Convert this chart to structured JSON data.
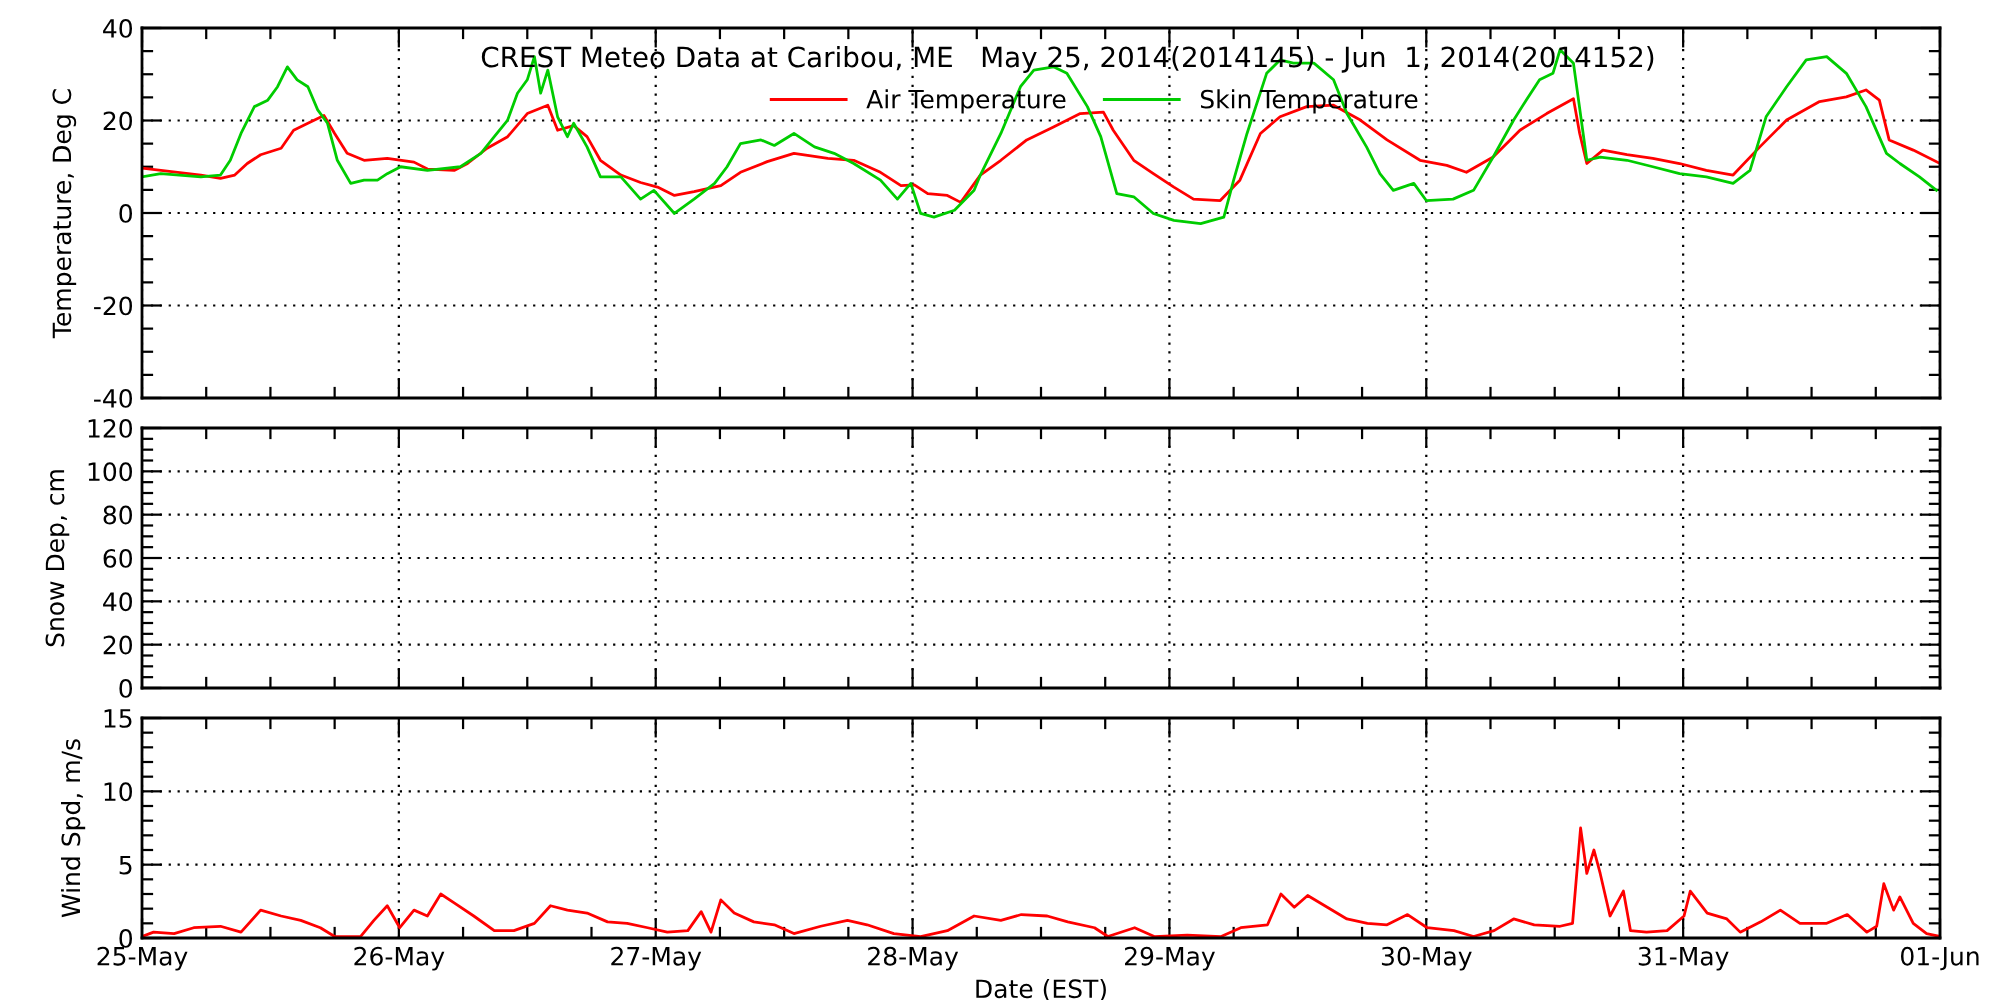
{
  "chart_data": [
    {
      "type": "line",
      "title": "CREST Meteo Data at Caribou, ME   May 25, 2014(2014145) - Jun  1, 2014(2014152)",
      "ylabel": "Temperature, Deg C",
      "xlim": [
        "2014-05-25T00:00",
        "2014-06-01T00:00"
      ],
      "xticks": [
        {
          "value": "2014-05-25T00:00",
          "label": null
        },
        {
          "value": "2014-05-26T00:00",
          "label": null
        },
        {
          "value": "2014-05-27T00:00",
          "label": null
        },
        {
          "value": "2014-05-28T00:00",
          "label": null
        },
        {
          "value": "2014-05-29T00:00",
          "label": null
        },
        {
          "value": "2014-05-30T00:00",
          "label": null
        },
        {
          "value": "2014-05-31T00:00",
          "label": null
        },
        {
          "value": "2014-06-01T00:00",
          "label": null
        }
      ],
      "ylim": [
        -40,
        40
      ],
      "yticks": [
        -40,
        -20,
        0,
        20,
        40
      ],
      "tick_labels": "y",
      "grid": true,
      "legend": "top",
      "series": [
        {
          "name": "Air Temperature",
          "color": "#ff0000",
          "x": [
            "2014-05-25T00:00",
            "2014-05-25T05:30",
            "2014-05-25T07:20",
            "2014-05-25T08:40",
            "2014-05-25T09:50",
            "2014-05-25T11:05",
            "2014-05-25T13:00",
            "2014-05-25T14:10",
            "2014-05-25T15:30",
            "2014-05-25T17:00",
            "2014-05-25T18:00",
            "2014-05-25T19:10",
            "2014-05-25T20:45",
            "2014-05-25T22:55",
            "2014-05-26T01:25",
            "2014-05-26T02:40",
            "2014-05-26T05:10",
            "2014-05-26T06:25",
            "2014-05-26T08:15",
            "2014-05-26T10:10",
            "2014-05-26T12:00",
            "2014-05-26T13:55",
            "2014-05-26T14:50",
            "2014-05-26T16:20",
            "2014-05-26T17:35",
            "2014-05-26T18:50",
            "2014-05-26T20:45",
            "2014-05-26T22:35",
            "2014-05-27T00:10",
            "2014-05-27T01:45",
            "2014-05-27T03:35",
            "2014-05-27T06:05",
            "2014-05-27T07:55",
            "2014-05-27T10:25",
            "2014-05-27T12:55",
            "2014-05-27T16:05",
            "2014-05-27T18:30",
            "2014-05-27T21:00",
            "2014-05-27T22:55",
            "2014-05-28T00:10",
            "2014-05-28T01:25",
            "2014-05-28T03:15",
            "2014-05-28T04:30",
            "2014-05-28T06:20",
            "2014-05-28T08:15",
            "2014-05-28T10:40",
            "2014-05-28T13:10",
            "2014-05-28T15:40",
            "2014-05-28T17:50",
            "2014-05-28T18:45",
            "2014-05-28T20:40",
            "2014-05-28T22:30",
            "2014-05-29T00:25",
            "2014-05-29T02:15",
            "2014-05-29T04:45",
            "2014-05-29T06:35",
            "2014-05-29T08:30",
            "2014-05-29T10:20",
            "2014-05-29T12:50",
            "2014-05-29T15:20",
            "2014-05-29T17:50",
            "2014-05-29T20:20",
            "2014-05-29T23:25",
            "2014-05-30T01:55",
            "2014-05-30T03:45",
            "2014-05-30T06:15",
            "2014-05-30T08:45",
            "2014-05-30T11:15",
            "2014-05-30T13:45",
            "2014-05-30T14:20",
            "2014-05-30T15:00",
            "2014-05-30T16:30",
            "2014-05-30T18:45",
            "2014-05-30T21:10",
            "2014-05-30T23:40",
            "2014-05-31T02:10",
            "2014-05-31T04:40",
            "2014-05-31T07:10",
            "2014-05-31T09:40",
            "2014-05-31T12:45",
            "2014-05-31T15:15",
            "2014-05-31T17:05",
            "2014-05-31T18:20",
            "2014-05-31T19:15",
            "2014-05-31T21:30",
            "2014-06-01T00:00"
          ],
          "values": [
            9.7,
            8.2,
            7.5,
            8.2,
            10.7,
            12.6,
            14.0,
            17.9,
            19.4,
            21.1,
            17.2,
            12.9,
            11.4,
            11.8,
            11.0,
            9.5,
            9.2,
            10.7,
            14.0,
            16.5,
            21.5,
            23.3,
            17.9,
            18.9,
            16.5,
            11.4,
            8.2,
            6.6,
            5.6,
            3.8,
            4.6,
            5.9,
            8.8,
            11.1,
            12.9,
            11.8,
            11.4,
            8.8,
            5.9,
            6.1,
            4.2,
            3.8,
            2.3,
            8.2,
            11.4,
            15.8,
            18.6,
            21.5,
            21.8,
            17.9,
            11.4,
            8.5,
            5.6,
            3.0,
            2.7,
            7.1,
            17.2,
            20.8,
            23.0,
            23.3,
            20.1,
            15.8,
            11.4,
            10.3,
            8.8,
            12.1,
            17.9,
            21.5,
            24.7,
            17.2,
            10.7,
            13.6,
            12.6,
            11.8,
            10.7,
            9.2,
            8.2,
            14.3,
            20.1,
            24.1,
            25.1,
            26.6,
            24.4,
            15.8,
            13.6,
            10.7
          ]
        },
        {
          "name": "Skin Temperature",
          "color": "#00cc00",
          "x": [
            "2014-05-25T00:00",
            "2014-05-25T01:45",
            "2014-05-25T05:30",
            "2014-05-25T07:20",
            "2014-05-25T08:15",
            "2014-05-25T09:15",
            "2014-05-25T10:30",
            "2014-05-25T11:45",
            "2014-05-25T12:40",
            "2014-05-25T13:35",
            "2014-05-25T14:30",
            "2014-05-25T15:30",
            "2014-05-25T16:25",
            "2014-05-25T17:20",
            "2014-05-25T18:15",
            "2014-05-25T19:30",
            "2014-05-25T20:45",
            "2014-05-25T22:00",
            "2014-05-25T22:55",
            "2014-05-26T00:10",
            "2014-05-26T02:40",
            "2014-05-26T05:45",
            "2014-05-26T07:40",
            "2014-05-26T08:55",
            "2014-05-26T10:10",
            "2014-05-26T11:05",
            "2014-05-26T12:00",
            "2014-05-26T12:40",
            "2014-05-26T13:15",
            "2014-05-26T13:55",
            "2014-05-26T14:50",
            "2014-05-26T15:45",
            "2014-05-26T16:20",
            "2014-05-26T17:35",
            "2014-05-26T18:50",
            "2014-05-26T20:45",
            "2014-05-26T22:35",
            "2014-05-26T23:50",
            "2014-05-27T01:45",
            "2014-05-27T03:35",
            "2014-05-27T05:30",
            "2014-05-27T06:40",
            "2014-05-27T07:55",
            "2014-05-27T09:50",
            "2014-05-27T11:05",
            "2014-05-27T12:55",
            "2014-05-27T14:50",
            "2014-05-27T16:40",
            "2014-05-27T18:30",
            "2014-05-27T21:00",
            "2014-05-27T22:35",
            "2014-05-27T23:50",
            "2014-05-28T00:45",
            "2014-05-28T02:00",
            "2014-05-28T03:55",
            "2014-05-28T05:45",
            "2014-05-28T06:20",
            "2014-05-28T08:15",
            "2014-05-28T10:05",
            "2014-05-28T11:20",
            "2014-05-28T13:10",
            "2014-05-28T14:25",
            "2014-05-28T16:20",
            "2014-05-28T17:35",
            "2014-05-28T19:05",
            "2014-05-28T20:40",
            "2014-05-28T22:30",
            "2014-05-29T00:25",
            "2014-05-29T02:55",
            "2014-05-29T05:05",
            "2014-05-29T06:00",
            "2014-05-29T07:15",
            "2014-05-29T09:05",
            "2014-05-29T10:20",
            "2014-05-29T11:35",
            "2014-05-29T13:30",
            "2014-05-29T15:20",
            "2014-05-29T16:35",
            "2014-05-29T18:25",
            "2014-05-29T19:40",
            "2014-05-29T20:55",
            "2014-05-29T22:50",
            "2014-05-30T00:00",
            "2014-05-30T02:30",
            "2014-05-30T04:25",
            "2014-05-30T06:15",
            "2014-05-30T08:10",
            "2014-05-30T09:20",
            "2014-05-30T10:35",
            "2014-05-30T11:50",
            "2014-05-30T12:30",
            "2014-05-30T13:45",
            "2014-05-30T15:00",
            "2014-05-30T16:15",
            "2014-05-30T18:45",
            "2014-05-30T21:10",
            "2014-05-30T23:40",
            "2014-05-31T02:10",
            "2014-05-31T04:40",
            "2014-05-31T06:15",
            "2014-05-31T07:45",
            "2014-05-31T09:40",
            "2014-05-31T11:30",
            "2014-05-31T13:25",
            "2014-05-31T15:15",
            "2014-05-31T17:05",
            "2014-05-31T19:00",
            "2014-05-31T20:15",
            "2014-05-31T22:05",
            "2014-05-31T23:40"
          ],
          "values": [
            7.8,
            8.5,
            7.8,
            8.2,
            11.4,
            17.2,
            23.0,
            24.4,
            27.3,
            31.6,
            28.8,
            27.3,
            22.3,
            19.4,
            11.4,
            6.4,
            7.1,
            7.1,
            8.5,
            10.0,
            9.2,
            10.0,
            12.9,
            16.5,
            20.1,
            25.9,
            28.8,
            33.8,
            25.9,
            30.9,
            20.8,
            16.5,
            19.4,
            14.3,
            7.8,
            7.8,
            3.0,
            4.9,
            -0.1,
            3.0,
            6.4,
            10.0,
            15.0,
            15.8,
            14.6,
            17.2,
            14.3,
            12.9,
            10.7,
            7.1,
            3.0,
            6.4,
            -0.1,
            -0.9,
            0.6,
            4.9,
            8.2,
            17.2,
            27.3,
            30.9,
            31.6,
            30.2,
            23.0,
            16.5,
            4.2,
            3.5,
            -0.1,
            -1.6,
            -2.3,
            -0.9,
            7.1,
            17.2,
            30.2,
            33.1,
            32.4,
            32.4,
            28.8,
            21.5,
            14.3,
            8.5,
            4.9,
            6.4,
            2.7,
            3.0,
            4.9,
            12.1,
            20.1,
            24.4,
            28.8,
            30.2,
            35.3,
            32.4,
            11.4,
            12.1,
            11.4,
            10.0,
            8.5,
            7.8,
            6.4,
            9.2,
            20.8,
            27.3,
            33.1,
            33.8,
            30.2,
            23.0,
            12.9,
            10.7,
            7.8,
            4.9
          ]
        }
      ]
    },
    {
      "type": "line",
      "ylabel": "Snow Dep, cm",
      "xlim": [
        "2014-05-25T00:00",
        "2014-06-01T00:00"
      ],
      "xticks": [
        {
          "value": "2014-05-25T00:00",
          "label": null
        },
        {
          "value": "2014-05-26T00:00",
          "label": null
        },
        {
          "value": "2014-05-27T00:00",
          "label": null
        },
        {
          "value": "2014-05-28T00:00",
          "label": null
        },
        {
          "value": "2014-05-29T00:00",
          "label": null
        },
        {
          "value": "2014-05-30T00:00",
          "label": null
        },
        {
          "value": "2014-05-31T00:00",
          "label": null
        },
        {
          "value": "2014-06-01T00:00",
          "label": null
        }
      ],
      "ylim": [
        0,
        120
      ],
      "yticks": [
        0,
        20,
        40,
        60,
        80,
        100,
        120
      ],
      "tick_labels": "y",
      "grid": true
    },
    {
      "type": "line",
      "xlabel": "Date (EST)",
      "ylabel": "Wind Spd, m/s",
      "xlim": [
        "2014-05-25T00:00",
        "2014-06-01T00:00"
      ],
      "xticks": [
        {
          "value": "2014-05-25T00:00",
          "label": "25-May"
        },
        {
          "value": "2014-05-26T00:00",
          "label": "26-May"
        },
        {
          "value": "2014-05-27T00:00",
          "label": "27-May"
        },
        {
          "value": "2014-05-28T00:00",
          "label": "28-May"
        },
        {
          "value": "2014-05-29T00:00",
          "label": "29-May"
        },
        {
          "value": "2014-05-30T00:00",
          "label": "30-May"
        },
        {
          "value": "2014-05-31T00:00",
          "label": "31-May"
        },
        {
          "value": "2014-06-01T00:00",
          "label": "01-Jun"
        }
      ],
      "ylim": [
        0,
        15
      ],
      "yticks": [
        0,
        5,
        10,
        15
      ],
      "grid": true,
      "series": [
        {
          "color": "#ff0000",
          "x": [
            "2014-05-25T00:00",
            "2014-05-25T01:05",
            "2014-05-25T03:00",
            "2014-05-25T04:50",
            "2014-05-25T07:20",
            "2014-05-25T09:15",
            "2014-05-25T11:05",
            "2014-05-25T13:00",
            "2014-05-25T14:50",
            "2014-05-25T16:40",
            "2014-05-25T18:00",
            "2014-05-25T20:25",
            "2014-05-25T21:40",
            "2014-05-25T22:55",
            "2014-05-26T00:05",
            "2014-05-26T01:25",
            "2014-05-26T02:40",
            "2014-05-26T03:55",
            "2014-05-26T05:10",
            "2014-05-26T07:00",
            "2014-05-26T08:55",
            "2014-05-26T10:45",
            "2014-05-26T12:40",
            "2014-05-26T14:10",
            "2014-05-26T15:45",
            "2014-05-26T17:35",
            "2014-05-26T19:30",
            "2014-05-26T21:20",
            "2014-05-26T23:15",
            "2014-05-27T01:05",
            "2014-05-27T03:00",
            "2014-05-27T04:15",
            "2014-05-27T05:10",
            "2014-05-27T06:05",
            "2014-05-27T07:20",
            "2014-05-27T09:10",
            "2014-05-27T11:05",
            "2014-05-27T12:55",
            "2014-05-27T15:25",
            "2014-05-27T17:55",
            "2014-05-27T19:45",
            "2014-05-27T22:15",
            "2014-05-28T00:45",
            "2014-05-28T03:15",
            "2014-05-28T05:45",
            "2014-05-28T08:15",
            "2014-05-28T10:10",
            "2014-05-28T12:35",
            "2014-05-28T14:30",
            "2014-05-28T17:00",
            "2014-05-28T18:15",
            "2014-05-28T20:45",
            "2014-05-28T22:35",
            "2014-05-29T01:40",
            "2014-05-29T04:50",
            "2014-05-29T06:40",
            "2014-05-29T09:10",
            "2014-05-29T10:25",
            "2014-05-29T11:40",
            "2014-05-29T12:55",
            "2014-05-29T14:45",
            "2014-05-29T16:35",
            "2014-05-29T18:30",
            "2014-05-29T20:20",
            "2014-05-29T22:15",
            "2014-05-30T00:05",
            "2014-05-30T02:35",
            "2014-05-30T04:25",
            "2014-05-30T06:20",
            "2014-05-30T08:10",
            "2014-05-30T10:05",
            "2014-05-30T12:30",
            "2014-05-30T13:40",
            "2014-05-30T14:25",
            "2014-05-30T15:00",
            "2014-05-30T15:40",
            "2014-05-30T16:15",
            "2014-05-30T17:10",
            "2014-05-30T18:25",
            "2014-05-30T19:05",
            "2014-05-30T20:35",
            "2014-05-30T22:30",
            "2014-05-31T00:05",
            "2014-05-31T00:40",
            "2014-05-31T02:15",
            "2014-05-31T04:05",
            "2014-05-31T05:20",
            "2014-05-31T07:15",
            "2014-05-31T09:05",
            "2014-05-31T10:55",
            "2014-05-31T13:25",
            "2014-05-31T15:20",
            "2014-05-31T17:10",
            "2014-05-31T18:05",
            "2014-05-31T18:45",
            "2014-05-31T19:40",
            "2014-05-31T20:15",
            "2014-05-31T21:30",
            "2014-05-31T22:45",
            "2014-06-01T00:00"
          ],
          "values": [
            0.1,
            0.4,
            0.3,
            0.7,
            0.8,
            0.4,
            1.9,
            1.5,
            1.2,
            0.7,
            0.1,
            0.1,
            1.2,
            2.2,
            0.7,
            1.9,
            1.5,
            3.0,
            2.4,
            1.5,
            0.5,
            0.5,
            1.0,
            2.2,
            1.9,
            1.7,
            1.1,
            1.0,
            0.7,
            0.4,
            0.5,
            1.8,
            0.4,
            2.6,
            1.7,
            1.1,
            0.9,
            0.3,
            0.8,
            1.2,
            0.9,
            0.3,
            0.1,
            0.5,
            1.5,
            1.2,
            1.6,
            1.5,
            1.1,
            0.7,
            0.1,
            0.7,
            0.1,
            0.2,
            0.1,
            0.7,
            0.9,
            3.0,
            2.1,
            2.9,
            2.1,
            1.3,
            1.0,
            0.9,
            1.6,
            0.7,
            0.5,
            0.1,
            0.5,
            1.3,
            0.9,
            0.8,
            1.0,
            7.5,
            4.4,
            6.0,
            4.4,
            1.5,
            3.2,
            0.5,
            0.4,
            0.5,
            1.5,
            3.2,
            1.7,
            1.3,
            0.4,
            1.1,
            1.9,
            1.0,
            1.0,
            1.6,
            0.4,
            0.8,
            3.7,
            1.9,
            2.8,
            1.0,
            0.3,
            0.1
          ]
        }
      ]
    }
  ]
}
